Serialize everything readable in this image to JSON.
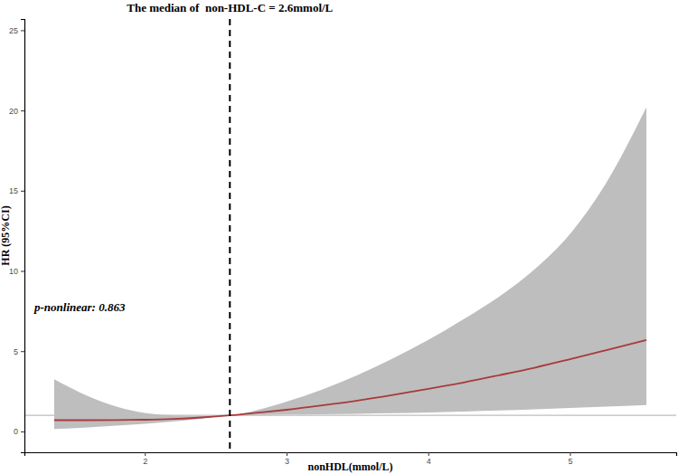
{
  "chart_data": {
    "type": "line",
    "title": "The median of  non-HDL-C = 2.6mmol/L",
    "x_label": "nonHDL(mmol/L)",
    "y_label": "HR (95%CI)",
    "annotations": [
      {
        "text": "p-nonlinear: 0.863"
      }
    ],
    "x": [
      1.36,
      1.6,
      1.8,
      2.0,
      2.2,
      2.4,
      2.6,
      2.8,
      3.0,
      3.25,
      3.5,
      3.75,
      4.0,
      4.25,
      4.5,
      4.75,
      5.0,
      5.25,
      5.54
    ],
    "values": [
      0.7,
      0.7,
      0.71,
      0.73,
      0.78,
      0.87,
      1.0,
      1.17,
      1.35,
      1.62,
      1.92,
      2.27,
      2.65,
      3.05,
      3.5,
      3.97,
      4.5,
      5.05,
      5.7
    ],
    "lower": [
      0.15,
      0.25,
      0.36,
      0.48,
      0.62,
      0.8,
      1.0,
      1.03,
      1.05,
      1.07,
      1.1,
      1.14,
      1.18,
      1.24,
      1.3,
      1.38,
      1.46,
      1.55,
      1.65
    ],
    "upper": [
      3.25,
      2.2,
      1.55,
      1.15,
      1.0,
      0.96,
      1.0,
      1.35,
      1.85,
      2.6,
      3.5,
      4.55,
      5.7,
      7.0,
      8.4,
      10.1,
      12.3,
      15.4,
      20.2
    ],
    "color": "#a83a3a",
    "vline": {
      "value": 2.6,
      "line_style": "dashed"
    },
    "hline": {
      "value": 1
    },
    "xlim": [
      1.15,
      5.75
    ],
    "ylim": [
      -1.3,
      25.7
    ],
    "xticks": [
      2,
      3,
      4,
      5
    ],
    "yticks": [
      0,
      5,
      10,
      15,
      20,
      25
    ],
    "grid": false
  }
}
